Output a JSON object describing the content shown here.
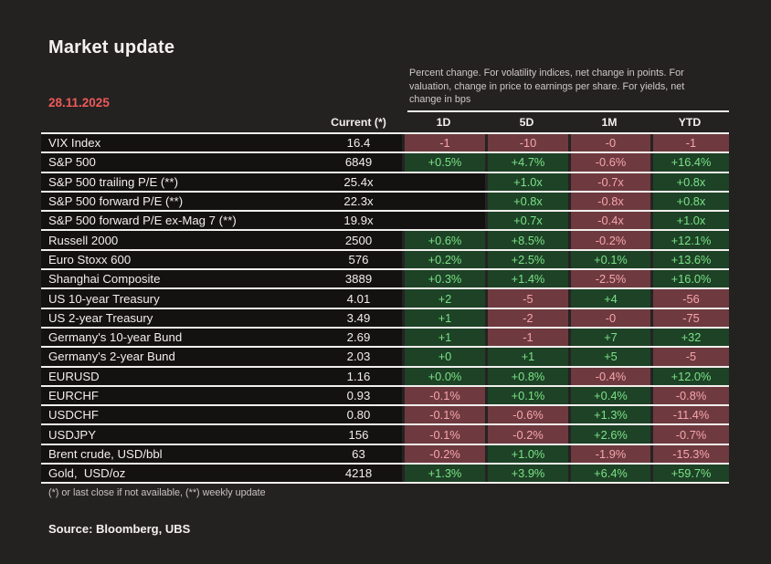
{
  "page": {
    "title": "Market update",
    "date": "28.11.2025",
    "note_lines": [
      "Percent change. For volatility indices, net change in points. For",
      "valuation, change in price to earnings per share. For yields,  net",
      "change in bps"
    ],
    "footnote": "(*) or last close if not available, (**) weekly update",
    "source": "Source: Bloomberg, UBS"
  },
  "colors": {
    "background": "#242121",
    "row_background": "#141111",
    "positive_bg": "#1d4226",
    "positive_text": "#7ce287",
    "negative_bg": "#6e3a3f",
    "negative_text": "#f6a6ad",
    "date_red": "#ed5a58",
    "rule_white": "#f1efed"
  },
  "table": {
    "columns": {
      "current": "Current (*)",
      "changes": [
        "1D",
        "5D",
        "1M",
        "YTD"
      ]
    },
    "rows": [
      {
        "label": "VIX Index",
        "current": "16.4",
        "changes": [
          {
            "text": "-1",
            "tone": "neg"
          },
          {
            "text": "-10",
            "tone": "neg"
          },
          {
            "text": "-0",
            "tone": "neg"
          },
          {
            "text": "-1",
            "tone": "neg"
          }
        ]
      },
      {
        "label": "S&P 500",
        "current": "6849",
        "changes": [
          {
            "text": "+0.5%",
            "tone": "pos"
          },
          {
            "text": "+4.7%",
            "tone": "pos"
          },
          {
            "text": "-0.6%",
            "tone": "neg"
          },
          {
            "text": "+16.4%",
            "tone": "pos"
          }
        ]
      },
      {
        "label": "S&P 500 trailing P/E (**)",
        "current": "25.4x",
        "changes": [
          {
            "text": "",
            "tone": "none"
          },
          {
            "text": "+1.0x",
            "tone": "pos"
          },
          {
            "text": "-0.7x",
            "tone": "neg"
          },
          {
            "text": "+0.8x",
            "tone": "pos"
          }
        ]
      },
      {
        "label": "S&P 500 forward P/E (**)",
        "current": "22.3x",
        "changes": [
          {
            "text": "",
            "tone": "none"
          },
          {
            "text": "+0.8x",
            "tone": "pos"
          },
          {
            "text": "-0.8x",
            "tone": "neg"
          },
          {
            "text": "+0.8x",
            "tone": "pos"
          }
        ]
      },
      {
        "label": "S&P 500 forward P/E ex-Mag 7 (**)",
        "current": "19.9x",
        "changes": [
          {
            "text": "",
            "tone": "none"
          },
          {
            "text": "+0.7x",
            "tone": "pos"
          },
          {
            "text": "-0.4x",
            "tone": "neg"
          },
          {
            "text": "+1.0x",
            "tone": "pos"
          }
        ]
      },
      {
        "label": "Russell 2000",
        "current": "2500",
        "changes": [
          {
            "text": "+0.6%",
            "tone": "pos"
          },
          {
            "text": "+8.5%",
            "tone": "pos"
          },
          {
            "text": "-0.2%",
            "tone": "neg"
          },
          {
            "text": "+12.1%",
            "tone": "pos"
          }
        ]
      },
      {
        "label": "Euro Stoxx 600",
        "current": "576",
        "changes": [
          {
            "text": "+0.2%",
            "tone": "pos"
          },
          {
            "text": "+2.5%",
            "tone": "pos"
          },
          {
            "text": "+0.1%",
            "tone": "pos"
          },
          {
            "text": "+13.6%",
            "tone": "pos"
          }
        ]
      },
      {
        "label": "Shanghai Composite",
        "current": "3889",
        "changes": [
          {
            "text": "+0.3%",
            "tone": "pos"
          },
          {
            "text": "+1.4%",
            "tone": "pos"
          },
          {
            "text": "-2.5%",
            "tone": "neg"
          },
          {
            "text": "+16.0%",
            "tone": "pos"
          }
        ]
      },
      {
        "label": "US 10-year Treasury",
        "current": "4.01",
        "changes": [
          {
            "text": "+2",
            "tone": "pos"
          },
          {
            "text": "-5",
            "tone": "neg"
          },
          {
            "text": "+4",
            "tone": "pos"
          },
          {
            "text": "-56",
            "tone": "neg"
          }
        ]
      },
      {
        "label": "US 2-year Treasury",
        "current": "3.49",
        "changes": [
          {
            "text": "+1",
            "tone": "pos"
          },
          {
            "text": "-2",
            "tone": "neg"
          },
          {
            "text": "-0",
            "tone": "neg"
          },
          {
            "text": "-75",
            "tone": "neg"
          }
        ]
      },
      {
        "label": "Germany's 10-year Bund",
        "current": "2.69",
        "changes": [
          {
            "text": "+1",
            "tone": "pos"
          },
          {
            "text": "-1",
            "tone": "neg"
          },
          {
            "text": "+7",
            "tone": "pos"
          },
          {
            "text": "+32",
            "tone": "pos"
          }
        ]
      },
      {
        "label": "Germany's 2-year Bund",
        "current": "2.03",
        "changes": [
          {
            "text": "+0",
            "tone": "pos"
          },
          {
            "text": "+1",
            "tone": "pos"
          },
          {
            "text": "+5",
            "tone": "pos"
          },
          {
            "text": "-5",
            "tone": "neg"
          }
        ]
      },
      {
        "label": "EURUSD",
        "current": "1.16",
        "changes": [
          {
            "text": "+0.0%",
            "tone": "pos"
          },
          {
            "text": "+0.8%",
            "tone": "pos"
          },
          {
            "text": "-0.4%",
            "tone": "neg"
          },
          {
            "text": "+12.0%",
            "tone": "pos"
          }
        ]
      },
      {
        "label": "EURCHF",
        "current": "0.93",
        "changes": [
          {
            "text": "-0.1%",
            "tone": "neg"
          },
          {
            "text": "+0.1%",
            "tone": "pos"
          },
          {
            "text": "+0.4%",
            "tone": "pos"
          },
          {
            "text": "-0.8%",
            "tone": "neg"
          }
        ]
      },
      {
        "label": "USDCHF",
        "current": "0.80",
        "changes": [
          {
            "text": "-0.1%",
            "tone": "neg"
          },
          {
            "text": "-0.6%",
            "tone": "neg"
          },
          {
            "text": "+1.3%",
            "tone": "pos"
          },
          {
            "text": "-11.4%",
            "tone": "neg"
          }
        ]
      },
      {
        "label": "USDJPY",
        "current": "156",
        "changes": [
          {
            "text": "-0.1%",
            "tone": "neg"
          },
          {
            "text": "-0.2%",
            "tone": "neg"
          },
          {
            "text": "+2.6%",
            "tone": "pos"
          },
          {
            "text": "-0.7%",
            "tone": "neg"
          }
        ]
      },
      {
        "label": "Brent crude, USD/bbl",
        "current": "63",
        "changes": [
          {
            "text": "-0.2%",
            "tone": "neg"
          },
          {
            "text": "+1.0%",
            "tone": "pos"
          },
          {
            "text": "-1.9%",
            "tone": "neg"
          },
          {
            "text": "-15.3%",
            "tone": "neg"
          }
        ]
      },
      {
        "label": "Gold,  USD/oz",
        "current": "4218",
        "changes": [
          {
            "text": "+1.3%",
            "tone": "pos"
          },
          {
            "text": "+3.9%",
            "tone": "pos"
          },
          {
            "text": "+6.4%",
            "tone": "pos"
          },
          {
            "text": "+59.7%",
            "tone": "pos"
          }
        ]
      }
    ]
  }
}
